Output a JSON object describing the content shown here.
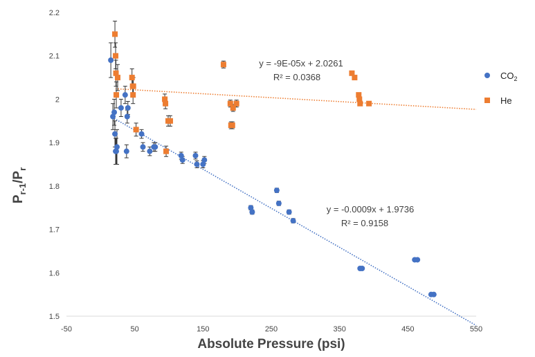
{
  "chart_data": {
    "type": "scatter",
    "xlabel": "Absolute Pressure (psi)",
    "ylabel": "P",
    "ylabel_sub": "r-1",
    "ylabel_mid": "/P",
    "ylabel_sub2": "r",
    "xlim": [
      -50,
      550
    ],
    "ylim": [
      1.5,
      2.2
    ],
    "xticks": [
      "-50",
      "50",
      "150",
      "250",
      "350",
      "450",
      "550"
    ],
    "yticks": [
      "1.5",
      "1.6",
      "1.7",
      "1.8",
      "1.9",
      "2",
      "2.1",
      "2.2"
    ],
    "grid": false,
    "legend_position": "right",
    "series": [
      {
        "name": "CO",
        "name_sub": "2",
        "color": "#4472C4",
        "marker": "circle",
        "points": [
          {
            "x": 15,
            "y": 2.09,
            "err": 0.04
          },
          {
            "x": 18,
            "y": 1.96,
            "err": 0.03
          },
          {
            "x": 20,
            "y": 1.97,
            "err": 0.03
          },
          {
            "x": 21,
            "y": 1.92,
            "err": 0.03
          },
          {
            "x": 22,
            "y": 1.88,
            "err": 0.03
          },
          {
            "x": 23,
            "y": 1.88,
            "err": 0.03
          },
          {
            "x": 24,
            "y": 1.89,
            "err": 0.04
          },
          {
            "x": 30,
            "y": 1.98,
            "err": 0.02
          },
          {
            "x": 36,
            "y": 2.01,
            "err": 0.02
          },
          {
            "x": 38,
            "y": 1.88,
            "err": 0.015
          },
          {
            "x": 39,
            "y": 1.96,
            "err": 0.015
          },
          {
            "x": 40,
            "y": 1.98,
            "err": 0.015
          },
          {
            "x": 60,
            "y": 1.92,
            "err": 0.01
          },
          {
            "x": 62,
            "y": 1.89,
            "err": 0.01
          },
          {
            "x": 72,
            "y": 1.88,
            "err": 0.01
          },
          {
            "x": 78,
            "y": 1.89,
            "err": 0.01
          },
          {
            "x": 80,
            "y": 1.89,
            "err": 0.01
          },
          {
            "x": 118,
            "y": 1.87,
            "err": 0.008
          },
          {
            "x": 120,
            "y": 1.86,
            "err": 0.008
          },
          {
            "x": 139,
            "y": 1.87,
            "err": 0.008
          },
          {
            "x": 141,
            "y": 1.85,
            "err": 0.008
          },
          {
            "x": 150,
            "y": 1.85,
            "err": 0.008
          },
          {
            "x": 152,
            "y": 1.86,
            "err": 0.008
          },
          {
            "x": 220,
            "y": 1.75,
            "err": 0.005
          },
          {
            "x": 222,
            "y": 1.74,
            "err": 0.005
          },
          {
            "x": 258,
            "y": 1.79,
            "err": 0.005
          },
          {
            "x": 261,
            "y": 1.76,
            "err": 0.005
          },
          {
            "x": 276,
            "y": 1.74,
            "err": 0.005
          },
          {
            "x": 282,
            "y": 1.72,
            "err": 0.005
          },
          {
            "x": 380,
            "y": 1.61,
            "err": 0.003
          },
          {
            "x": 383,
            "y": 1.61,
            "err": 0.003
          },
          {
            "x": 460,
            "y": 1.63,
            "err": 0.003
          },
          {
            "x": 464,
            "y": 1.63,
            "err": 0.003
          },
          {
            "x": 484,
            "y": 1.55,
            "err": 0.003
          },
          {
            "x": 488,
            "y": 1.55,
            "err": 0.003
          }
        ],
        "trendline": {
          "slope": -0.0009,
          "intercept": 1.9736,
          "x_range": [
            20,
            550
          ],
          "equation": "y = -0.0009x + 1.9736",
          "r2": "R² = 0.9158"
        }
      },
      {
        "name": "He",
        "color": "#ED7D31",
        "marker": "square",
        "points": [
          {
            "x": 21,
            "y": 2.15,
            "err": 0.03
          },
          {
            "x": 22,
            "y": 2.1,
            "err": 0.03
          },
          {
            "x": 22.5,
            "y": 2.06,
            "err": 0.03
          },
          {
            "x": 23,
            "y": 2.01,
            "err": 0.03
          },
          {
            "x": 25,
            "y": 2.05,
            "err": 0.03
          },
          {
            "x": 46,
            "y": 2.05,
            "err": 0.02
          },
          {
            "x": 47,
            "y": 2.03,
            "err": 0.02
          },
          {
            "x": 47.5,
            "y": 2.01,
            "err": 0.02
          },
          {
            "x": 48,
            "y": 2.03,
            "err": 0.02
          },
          {
            "x": 52,
            "y": 1.93,
            "err": 0.015
          },
          {
            "x": 94,
            "y": 2.0,
            "err": 0.012
          },
          {
            "x": 95,
            "y": 1.99,
            "err": 0.012
          },
          {
            "x": 96,
            "y": 1.88,
            "err": 0.012
          },
          {
            "x": 99,
            "y": 1.95,
            "err": 0.012
          },
          {
            "x": 102,
            "y": 1.95,
            "err": 0.012
          },
          {
            "x": 180,
            "y": 2.08,
            "err": 0.008
          },
          {
            "x": 190,
            "y": 1.99,
            "err": 0.008
          },
          {
            "x": 191,
            "y": 1.94,
            "err": 0.008
          },
          {
            "x": 193,
            "y": 1.94,
            "err": 0.008
          },
          {
            "x": 194,
            "y": 1.98,
            "err": 0.008
          },
          {
            "x": 199,
            "y": 1.99,
            "err": 0.008
          },
          {
            "x": 368,
            "y": 2.06,
            "err": 0.005
          },
          {
            "x": 372,
            "y": 2.05,
            "err": 0.005
          },
          {
            "x": 378,
            "y": 2.01,
            "err": 0.005
          },
          {
            "x": 379,
            "y": 2.0,
            "err": 0.005
          },
          {
            "x": 380,
            "y": 1.99,
            "err": 0.005
          },
          {
            "x": 393,
            "y": 1.99,
            "err": 0.005
          }
        ],
        "trendline": {
          "slope": -9e-05,
          "intercept": 2.0261,
          "x_range": [
            22,
            550
          ],
          "equation": "y = -9E-05x + 2.0261",
          "r2": "R² = 0.0368"
        }
      }
    ]
  }
}
